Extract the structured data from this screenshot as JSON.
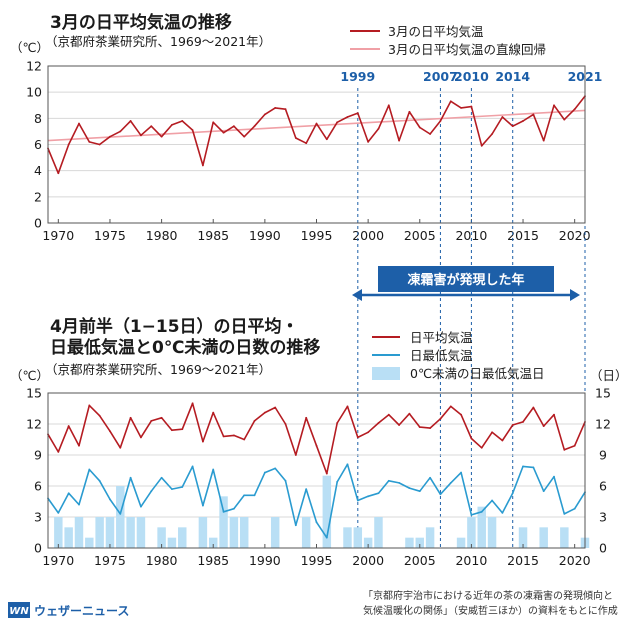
{
  "chart_data": [
    {
      "type": "line",
      "title_main": "3月の日平均気温の推移",
      "title_sub": "（京都府茶業研究所、1969〜2021年）",
      "y_unit": "（℃）",
      "x": [
        1969,
        1970,
        1971,
        1972,
        1973,
        1974,
        1975,
        1976,
        1977,
        1978,
        1979,
        1980,
        1981,
        1982,
        1983,
        1984,
        1985,
        1986,
        1987,
        1988,
        1989,
        1990,
        1991,
        1992,
        1993,
        1994,
        1995,
        1996,
        1997,
        1998,
        1999,
        2000,
        2001,
        2002,
        2003,
        2004,
        2005,
        2006,
        2007,
        2008,
        2009,
        2010,
        2011,
        2012,
        2013,
        2014,
        2015,
        2016,
        2017,
        2018,
        2019,
        2020,
        2021
      ],
      "series": [
        {
          "name": "3月の日平均気温",
          "color": "#b51c22",
          "values": [
            5.7,
            3.8,
            6.0,
            7.6,
            6.2,
            6.0,
            6.6,
            7.0,
            7.8,
            6.7,
            7.4,
            6.6,
            7.5,
            7.8,
            7.1,
            4.4,
            7.7,
            6.9,
            7.4,
            6.6,
            7.4,
            8.3,
            8.8,
            8.7,
            6.5,
            6.1,
            7.6,
            6.4,
            7.7,
            8.1,
            8.4,
            6.2,
            7.2,
            9.0,
            6.3,
            8.5,
            7.3,
            6.8,
            7.8,
            9.3,
            8.8,
            8.9,
            5.9,
            6.8,
            8.1,
            7.4,
            7.8,
            8.3,
            6.3,
            9.0,
            7.9,
            8.7,
            9.7
          ]
        },
        {
          "name": "3月の日平均気温の直線回帰",
          "color": "#f0a0a6",
          "trend": [
            6.3,
            8.6
          ]
        }
      ],
      "ylim": [
        0,
        12
      ],
      "y_ticks": [
        "0",
        "2",
        "4",
        "6",
        "8",
        "10",
        "12"
      ],
      "x_ticks": [
        "1970",
        "1975",
        "1980",
        "1985",
        "1990",
        "1995",
        "2000",
        "2005",
        "2010",
        "2015",
        "2020"
      ],
      "highlight_years": [
        "1999",
        "2007",
        "2010",
        "2014",
        "2021"
      ]
    },
    {
      "type": "line+bar",
      "title_main_1": "4月前半（1−15日）の日平均・",
      "title_main_2": "日最低気温と0℃未満の日数の推移",
      "title_sub": "（京都府茶業研究所、1969〜2021年）",
      "y_unit_left": "（℃）",
      "y_unit_right": "（日）",
      "x": [
        1969,
        1970,
        1971,
        1972,
        1973,
        1974,
        1975,
        1976,
        1977,
        1978,
        1979,
        1980,
        1981,
        1982,
        1983,
        1984,
        1985,
        1986,
        1987,
        1988,
        1989,
        1990,
        1991,
        1992,
        1993,
        1994,
        1995,
        1996,
        1997,
        1998,
        1999,
        2000,
        2001,
        2002,
        2003,
        2004,
        2005,
        2006,
        2007,
        2008,
        2009,
        2010,
        2011,
        2012,
        2013,
        2014,
        2015,
        2016,
        2017,
        2018,
        2019,
        2020,
        2021
      ],
      "series": [
        {
          "name": "日平均気温",
          "color": "#b51c22",
          "values": [
            11.0,
            9.3,
            11.8,
            9.9,
            13.8,
            12.8,
            11.3,
            9.7,
            12.6,
            10.7,
            12.3,
            12.6,
            11.4,
            11.5,
            14.0,
            10.3,
            13.1,
            10.8,
            10.9,
            10.5,
            12.3,
            13.1,
            13.6,
            12.0,
            9.0,
            12.6,
            9.9,
            7.2,
            12.1,
            13.7,
            10.7,
            11.2,
            12.1,
            12.9,
            11.9,
            13.0,
            11.7,
            11.6,
            12.5,
            13.7,
            12.9,
            10.6,
            9.7,
            11.2,
            10.4,
            11.9,
            12.2,
            13.6,
            11.8,
            12.9,
            9.5,
            9.9,
            12.2
          ]
        },
        {
          "name": "日最低気温",
          "color": "#2a9bd0",
          "values": [
            4.8,
            3.4,
            5.3,
            4.2,
            7.6,
            6.5,
            4.7,
            3.3,
            6.8,
            4.0,
            5.5,
            6.8,
            5.7,
            5.9,
            7.9,
            4.1,
            7.6,
            3.5,
            3.8,
            5.1,
            5.1,
            7.3,
            7.7,
            6.5,
            2.2,
            5.7,
            2.5,
            1.0,
            6.4,
            8.1,
            4.6,
            5.0,
            5.3,
            6.5,
            6.3,
            5.8,
            5.5,
            6.8,
            5.2,
            6.3,
            7.3,
            3.2,
            3.5,
            4.6,
            3.4,
            5.3,
            7.9,
            7.8,
            5.5,
            6.9,
            3.3,
            3.8,
            5.4
          ]
        },
        {
          "name": "0℃未満の日最低気温日",
          "color": "#b9dff5",
          "type": "bar",
          "values": [
            0,
            3,
            2,
            3,
            1,
            3,
            3,
            6,
            3,
            3,
            0,
            2,
            1,
            2,
            0,
            3,
            1,
            5,
            3,
            3,
            0,
            0,
            3,
            0,
            0,
            3,
            0,
            7,
            0,
            2,
            2,
            1,
            3,
            0,
            0,
            1,
            1,
            2,
            0,
            0,
            1,
            3,
            4,
            3,
            0,
            0,
            2,
            0,
            2,
            0,
            2,
            0,
            1
          ]
        }
      ],
      "ylim_left": [
        0,
        15
      ],
      "ylim_right": [
        0,
        15
      ],
      "y_ticks": [
        "0",
        "3",
        "6",
        "9",
        "12",
        "15"
      ],
      "x_ticks": [
        "1970",
        "1975",
        "1980",
        "1985",
        "1990",
        "1995",
        "2000",
        "2005",
        "2010",
        "2015",
        "2020"
      ]
    }
  ],
  "frost_banner": {
    "label": "凍霜害が発現した年"
  },
  "footer": {
    "line1": "「京都府宇治市における近年の茶の凍霜害の発現傾向と",
    "line2": "気候温暖化の関係」（安威哲三ほか）の資料をもとに作成"
  },
  "brand": {
    "logo_text": "WN",
    "name": "ウェザーニュース"
  },
  "colors": {
    "accent": "#1d5fa8",
    "red": "#b51c22",
    "blue": "#2a9bd0",
    "bar": "#b9dff5"
  }
}
